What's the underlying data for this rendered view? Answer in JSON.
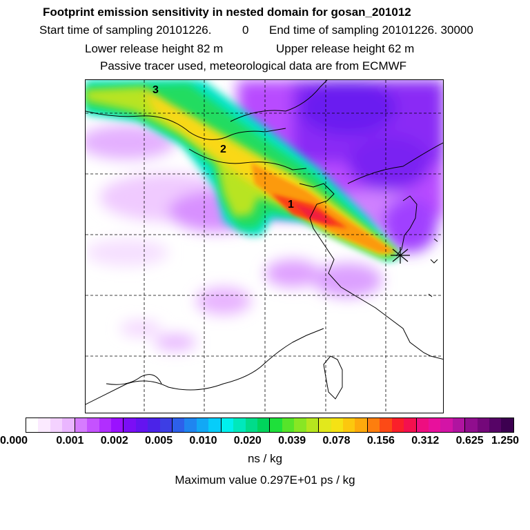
{
  "title": "Footprint emission sensitivity in nested domain for gosan_201012",
  "sampling": {
    "start_label": "Start time of sampling 20101226.",
    "start_value": "0",
    "end_label": "End time of sampling 20101226. 30000"
  },
  "release": {
    "lower": "Lower release height   82 m",
    "upper": "Upper release height   62 m"
  },
  "info": "Passive tracer used, meteorological data are from ECMWF",
  "map_labels": [
    "3",
    "2",
    "1"
  ],
  "colorbar": {
    "ticks": [
      "0.000",
      "0.001",
      "0.002",
      "0.005",
      "0.010",
      "0.020",
      "0.039",
      "0.078",
      "0.156",
      "0.312",
      "0.625",
      "1.250"
    ],
    "colors": [
      "#ffffff",
      "#fbeaff",
      "#f4d2ff",
      "#eab6ff",
      "#d67cff",
      "#c552ff",
      "#b12eff",
      "#9a11ff",
      "#7b0ef5",
      "#6414f0",
      "#4b23e8",
      "#3d3ee4",
      "#2d60ea",
      "#1f85f0",
      "#12a8f5",
      "#06cdfa",
      "#00f0ee",
      "#00e8bc",
      "#00dc8a",
      "#00d45c",
      "#1ee03a",
      "#56e42a",
      "#88e624",
      "#b6e61e",
      "#e2e81c",
      "#f5e214",
      "#fcc80e",
      "#feaa0c",
      "#fd7e0e",
      "#fc4a16",
      "#fa1f2a",
      "#f4104e",
      "#ee0e80",
      "#e8109c",
      "#d314a6",
      "#b014a0",
      "#900e8e",
      "#74087a",
      "#560466",
      "#3c0050"
    ],
    "unit": "ns / kg"
  },
  "max_value": "Maximum value  0.297E+01 ps / kg",
  "colors": {
    "plume_core": "#fc3c1c",
    "plume_mid": "#f8e018",
    "plume_edge": "#18e070",
    "background": "#c856ff"
  }
}
